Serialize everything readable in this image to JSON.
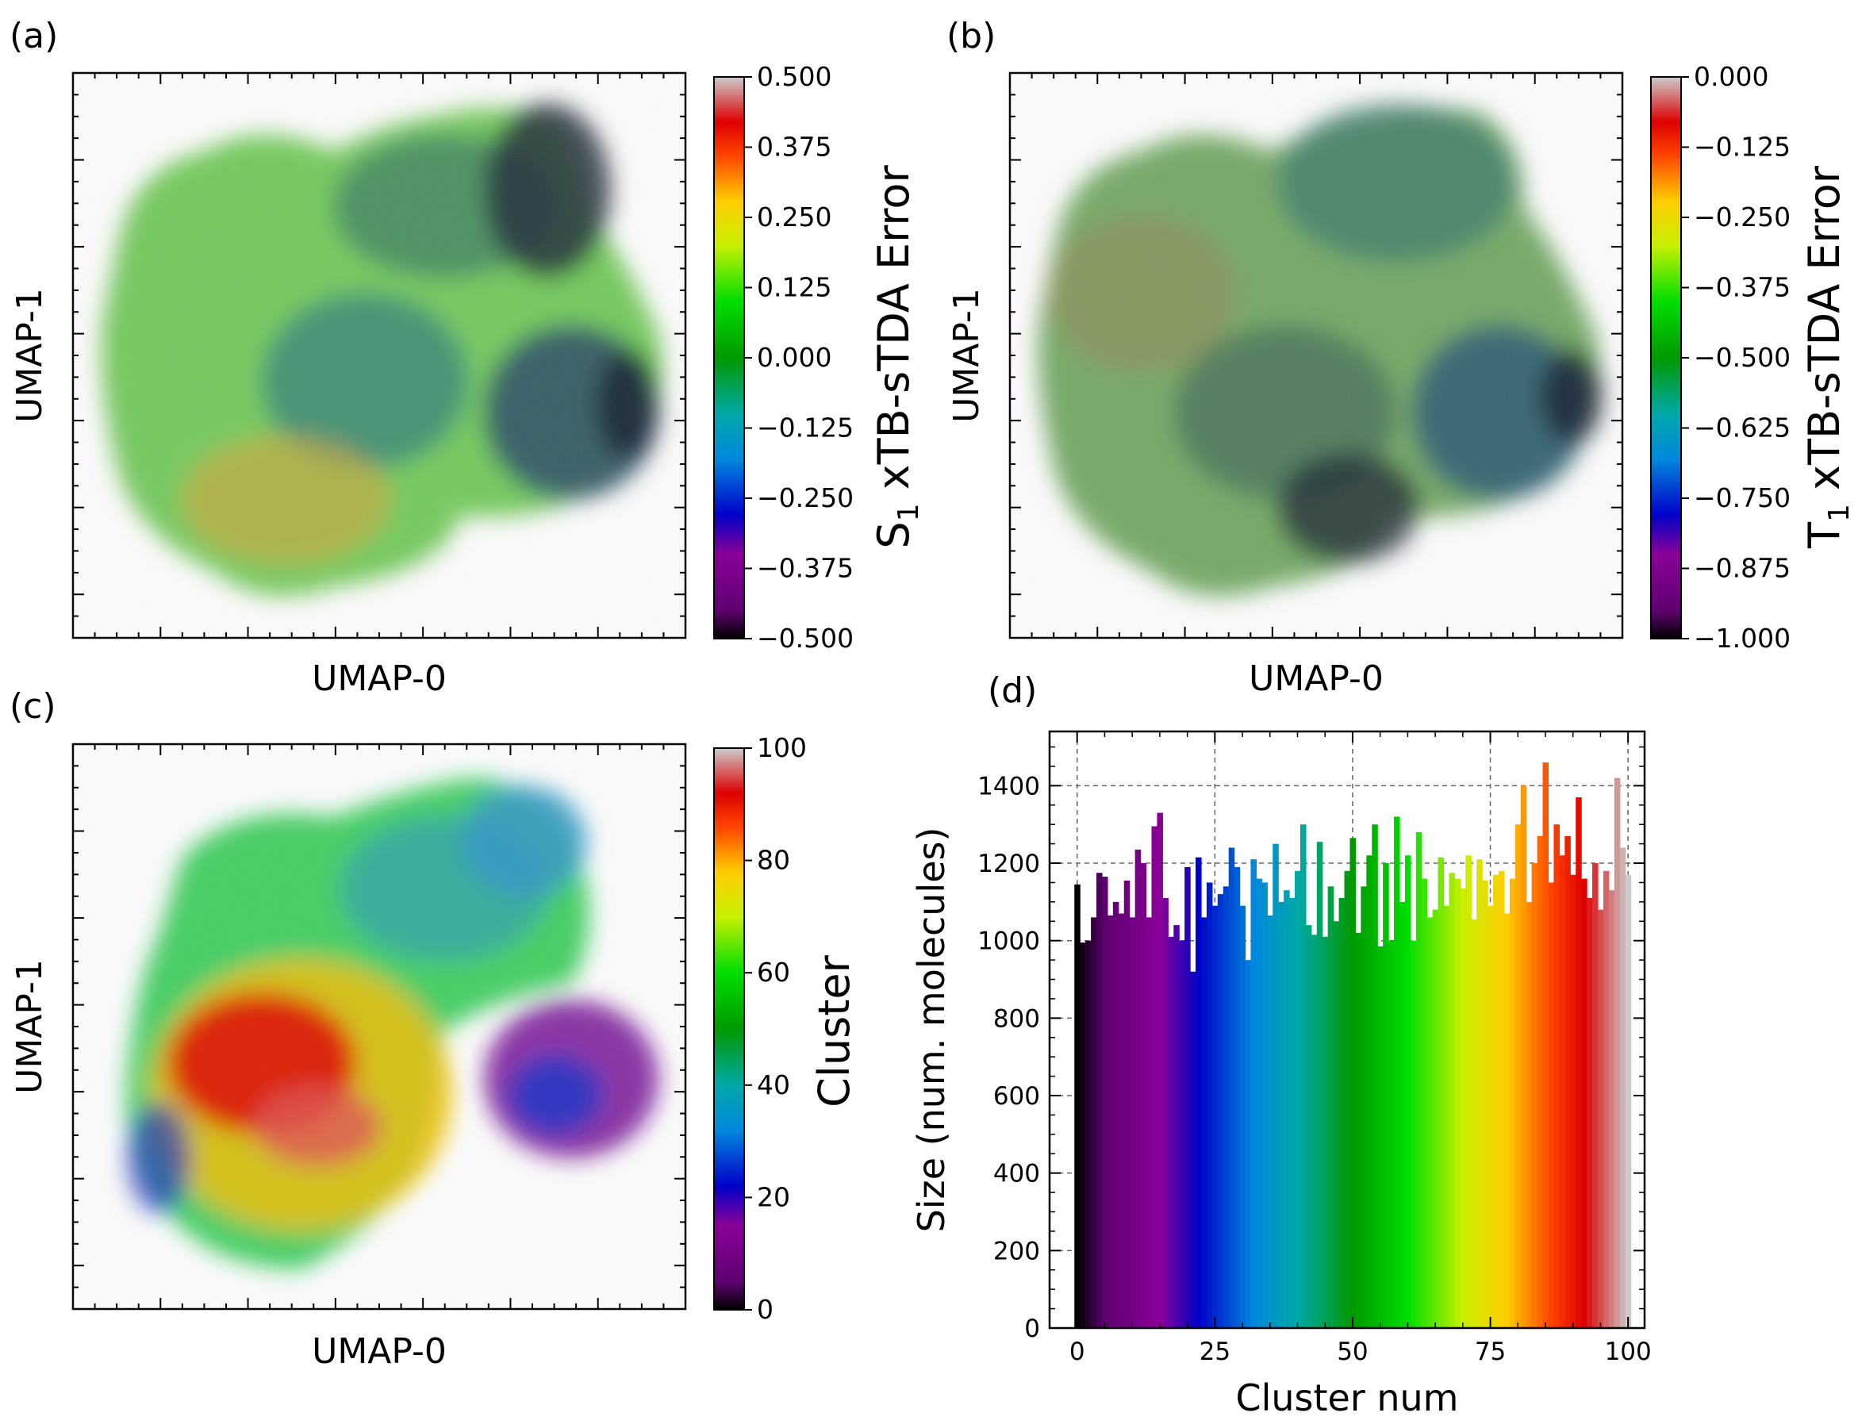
{
  "figure": {
    "panels": [
      {
        "id": "a",
        "label": "(a)",
        "xlabel": "UMAP-0",
        "ylabel": "UMAP-1",
        "colorbar": {
          "label_main": "S",
          "label_sub": "1",
          "label_rest": " xTB-sTDA Error",
          "ticks": [
            "0.500",
            "0.375",
            "0.250",
            "0.125",
            "0.000",
            "−0.125",
            "−0.250",
            "−0.375",
            "−0.500"
          ],
          "cmap": "nipy_spectral"
        }
      },
      {
        "id": "b",
        "label": "(b)",
        "xlabel": "UMAP-0",
        "ylabel": "UMAP-1",
        "colorbar": {
          "label_main": "T",
          "label_sub": "1",
          "label_rest": " xTB-sTDA Error",
          "ticks": [
            "0.000",
            "−0.125",
            "−0.250",
            "−0.375",
            "−0.500",
            "−0.625",
            "−0.750",
            "−0.875",
            "−1.000"
          ],
          "cmap": "nipy_spectral"
        }
      },
      {
        "id": "c",
        "label": "(c)",
        "xlabel": "UMAP-0",
        "ylabel": "UMAP-1",
        "colorbar": {
          "label_main": "Cluster",
          "label_sub": "",
          "label_rest": "",
          "ticks": [
            "100",
            "80",
            "60",
            "40",
            "20",
            "0"
          ],
          "cmap": "nipy_spectral"
        }
      },
      {
        "id": "d",
        "label": "(d)"
      }
    ]
  },
  "chart_data": [
    {
      "type": "scatter",
      "panel": "a",
      "title": "",
      "xlabel": "UMAP-0",
      "ylabel": "UMAP-1",
      "color_label": "S1 xTB-sTDA Error",
      "color_range": [
        -0.5,
        0.5
      ],
      "regions": [
        {
          "name": "main-blob",
          "dominant_value": 0.1
        },
        {
          "name": "main-blob-center",
          "dominant_value": -0.2
        },
        {
          "name": "main-blob-lower",
          "dominant_value": 0.25
        },
        {
          "name": "upper-right-lobe",
          "dominant_value": -0.3
        },
        {
          "name": "right-lobe",
          "dominant_value": -0.35
        }
      ]
    },
    {
      "type": "scatter",
      "panel": "b",
      "title": "",
      "xlabel": "UMAP-0",
      "ylabel": "UMAP-1",
      "color_label": "T1 xTB-sTDA Error",
      "color_range": [
        -1.0,
        0.0
      ],
      "regions": [
        {
          "name": "main-blob",
          "dominant_value": -0.45
        },
        {
          "name": "main-blob-center",
          "dominant_value": -0.7
        },
        {
          "name": "upper-right-lobe",
          "dominant_value": -0.65
        },
        {
          "name": "right-lobe",
          "dominant_value": -0.75
        }
      ]
    },
    {
      "type": "scatter",
      "panel": "c",
      "title": "",
      "xlabel": "UMAP-0",
      "ylabel": "UMAP-1",
      "color_label": "Cluster",
      "color_range": [
        0,
        100
      ],
      "regions": [
        {
          "name": "main-blob-core",
          "dominant_value": 85
        },
        {
          "name": "main-blob-ring",
          "dominant_value": 70
        },
        {
          "name": "upper-left",
          "dominant_value": 50
        },
        {
          "name": "upper-right-lobe",
          "dominant_value": 35
        },
        {
          "name": "right-lobe",
          "dominant_value": 12
        }
      ]
    },
    {
      "type": "bar",
      "panel": "d",
      "title": "",
      "xlabel": "Cluster num",
      "ylabel": "Size (num. molecules)",
      "xlim": [
        -5,
        103
      ],
      "ylim": [
        0,
        1540
      ],
      "grid": true,
      "xticks": [
        0,
        25,
        50,
        75,
        100
      ],
      "yticks": [
        0,
        200,
        400,
        600,
        800,
        1000,
        1200,
        1400
      ],
      "x": [
        0,
        1,
        2,
        3,
        4,
        5,
        6,
        7,
        8,
        9,
        10,
        11,
        12,
        13,
        14,
        15,
        16,
        17,
        18,
        19,
        20,
        21,
        22,
        23,
        24,
        25,
        26,
        27,
        28,
        29,
        30,
        31,
        32,
        33,
        34,
        35,
        36,
        37,
        38,
        39,
        40,
        41,
        42,
        43,
        44,
        45,
        46,
        47,
        48,
        49,
        50,
        51,
        52,
        53,
        54,
        55,
        56,
        57,
        58,
        59,
        60,
        61,
        62,
        63,
        64,
        65,
        66,
        67,
        68,
        69,
        70,
        71,
        72,
        73,
        74,
        75,
        76,
        77,
        78,
        79,
        80,
        81,
        82,
        83,
        84,
        85,
        86,
        87,
        88,
        89,
        90,
        91,
        92,
        93,
        94,
        95,
        96,
        97,
        98,
        99,
        100
      ],
      "values": [
        1145,
        995,
        1000,
        1060,
        1175,
        1165,
        1065,
        1100,
        1070,
        1155,
        1060,
        1235,
        1200,
        1060,
        1295,
        1330,
        1110,
        1010,
        1040,
        1000,
        1190,
        920,
        1215,
        1060,
        1150,
        1090,
        1120,
        1140,
        1240,
        1190,
        1090,
        950,
        1210,
        1160,
        1150,
        1065,
        1250,
        1100,
        1130,
        1110,
        1180,
        1300,
        1040,
        1015,
        1255,
        1010,
        1140,
        1050,
        1110,
        1180,
        1265,
        1020,
        1140,
        1220,
        1300,
        985,
        1200,
        1000,
        1320,
        1100,
        1220,
        1000,
        1280,
        1160,
        1060,
        1080,
        1215,
        1090,
        1175,
        1160,
        1135,
        1220,
        1055,
        1210,
        1155,
        1090,
        1170,
        1180,
        1070,
        1160,
        1300,
        1400,
        1100,
        1200,
        1270,
        1460,
        1150,
        1300,
        1220,
        1270,
        1170,
        1370,
        1160,
        1110,
        1200,
        1080,
        1180,
        1130,
        1420,
        1240,
        1170
      ]
    }
  ]
}
